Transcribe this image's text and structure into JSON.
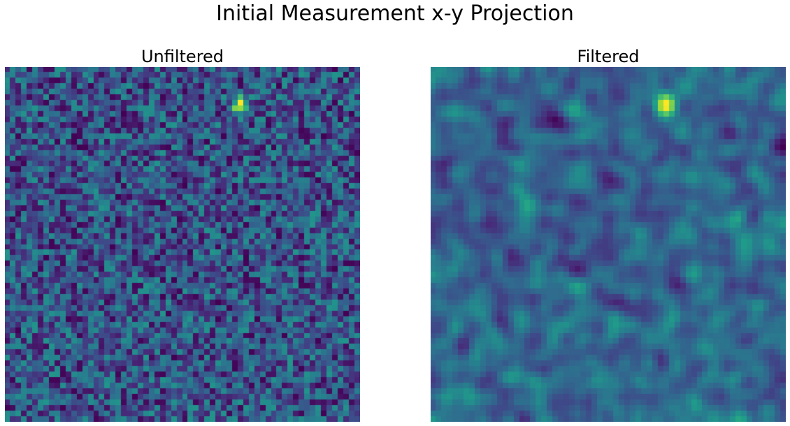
{
  "figure": {
    "title": "Initial Measurement x-y Projection"
  },
  "colormap": {
    "name": "viridis",
    "stops": [
      "#440154",
      "#482878",
      "#3e4a89",
      "#31688e",
      "#26828e",
      "#1f9e89",
      "#35b779",
      "#6ece58",
      "#b5de2b",
      "#fde725"
    ]
  },
  "chart_data": [
    {
      "type": "heatmap",
      "title": "Unfiltered",
      "axes_visible": false,
      "grid": false,
      "rows": 64,
      "cols": 64,
      "vrange": [
        0,
        1
      ],
      "background_level": 0.45,
      "noise_amplitude": 0.3,
      "smoothing_passes": 0,
      "peak": {
        "row": 6,
        "col": 42,
        "value": 1.0
      },
      "seed": 7
    },
    {
      "type": "heatmap",
      "title": "Filtered",
      "axes_visible": false,
      "grid": false,
      "rows": 64,
      "cols": 64,
      "vrange": [
        0,
        1
      ],
      "background_level": 0.45,
      "noise_amplitude": 0.3,
      "smoothing_passes": 2,
      "peak": {
        "row": 6,
        "col": 42,
        "value": 1.0
      },
      "seed": 7
    }
  ]
}
